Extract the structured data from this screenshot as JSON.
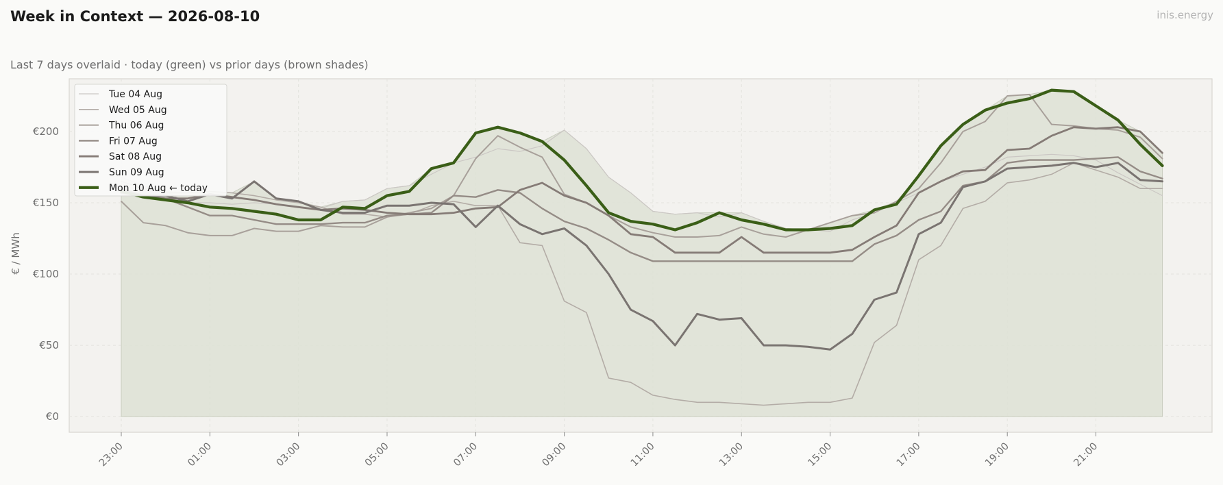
{
  "header": {
    "title": "Week in Context — 2026-08-10",
    "subtitle": "Last 7 days overlaid  ·  today (green) vs prior days (brown shades)",
    "brand": "inis.energy"
  },
  "colors": {
    "today": "#3a5e17",
    "area_fill": "#dde2d5",
    "plot_bg": "#f3f2ef",
    "grid": "#e3e3de",
    "axis_text": "#6f6f6f"
  },
  "chart_data": {
    "type": "line",
    "title": "Week in Context — 2026-08-10",
    "subtitle": "Last 7 days overlaid  ·  today (green) vs prior days (brown shades)",
    "xlabel": "",
    "ylabel": "€ / MWh",
    "ylim": [
      -11,
      237
    ],
    "x": [
      "23:00",
      "23:30",
      "00:00",
      "00:30",
      "01:00",
      "01:30",
      "02:00",
      "02:30",
      "03:00",
      "03:30",
      "04:00",
      "04:30",
      "05:00",
      "05:30",
      "06:00",
      "06:30",
      "07:00",
      "07:30",
      "08:00",
      "08:30",
      "09:00",
      "09:30",
      "10:00",
      "10:30",
      "11:00",
      "11:30",
      "12:00",
      "12:30",
      "13:00",
      "13:30",
      "14:00",
      "14:30",
      "15:00",
      "15:30",
      "16:00",
      "16:30",
      "17:00",
      "17:30",
      "18:00",
      "18:30",
      "19:00",
      "19:30",
      "20:00",
      "20:30",
      "21:00",
      "21:30",
      "22:00",
      "22:30"
    ],
    "xticks": [
      "23:00",
      "01:00",
      "03:00",
      "05:00",
      "07:00",
      "09:00",
      "11:00",
      "13:00",
      "15:00",
      "17:00",
      "19:00",
      "21:00"
    ],
    "yticks": [
      0,
      50,
      100,
      150,
      200
    ],
    "ytick_labels": [
      "€0",
      "€50",
      "€100",
      "€150",
      "€200"
    ],
    "grid": true,
    "legend_position": "top-left",
    "series": [
      {
        "name": "Tue 04 Aug",
        "color": "#cbc7c4",
        "width": 1.2,
        "values": [
          168,
          162,
          158,
          150,
          150,
          149,
          150,
          149,
          147,
          146,
          151,
          152,
          160,
          162,
          170,
          178,
          182,
          188,
          186,
          190,
          201,
          188,
          168,
          157,
          144,
          142,
          143,
          140,
          143,
          137,
          132,
          131,
          130,
          138,
          143,
          150,
          157,
          165,
          170,
          175,
          182,
          183,
          184,
          183,
          180,
          171,
          163,
          155
        ]
      },
      {
        "name": "Wed 05 Aug",
        "color": "#b3aca6",
        "width": 1.6,
        "values": [
          165,
          160,
          157,
          157,
          158,
          157,
          155,
          152,
          150,
          147,
          142,
          142,
          140,
          142,
          148,
          151,
          148,
          148,
          122,
          120,
          81,
          73,
          27,
          24,
          15,
          12,
          10,
          10,
          9,
          8,
          9,
          10,
          10,
          13,
          52,
          64,
          110,
          120,
          146,
          151,
          164,
          166,
          170,
          178,
          173,
          168,
          160,
          160
        ]
      },
      {
        "name": "Thu 06 Aug",
        "color": "#a8a09a",
        "width": 2.0,
        "values": [
          151,
          136,
          134,
          129,
          127,
          127,
          132,
          130,
          130,
          134,
          133,
          133,
          140,
          143,
          146,
          155,
          181,
          197,
          189,
          182,
          156,
          150,
          141,
          133,
          129,
          126,
          126,
          127,
          133,
          128,
          126,
          131,
          136,
          141,
          143,
          151,
          160,
          178,
          200,
          207,
          225,
          226,
          205,
          204,
          202,
          201,
          196,
          181
        ]
      },
      {
        "name": "Fri 07 Aug",
        "color": "#958c86",
        "width": 2.4,
        "values": [
          160,
          155,
          153,
          147,
          141,
          141,
          138,
          135,
          135,
          135,
          136,
          136,
          141,
          142,
          143,
          155,
          154,
          159,
          157,
          146,
          137,
          132,
          124,
          115,
          109,
          109,
          109,
          109,
          109,
          109,
          109,
          109,
          109,
          109,
          121,
          127,
          138,
          144,
          162,
          165,
          178,
          180,
          180,
          180,
          181,
          182,
          172,
          167
        ]
      },
      {
        "name": "Sat 08 Aug",
        "color": "#857b76",
        "width": 2.8,
        "values": [
          157,
          155,
          153,
          153,
          156,
          154,
          152,
          149,
          147,
          145,
          146,
          145,
          143,
          142,
          142,
          143,
          146,
          147,
          159,
          164,
          155,
          150,
          141,
          128,
          126,
          115,
          115,
          115,
          126,
          115,
          115,
          115,
          115,
          117,
          126,
          134,
          157,
          165,
          172,
          173,
          187,
          188,
          197,
          203,
          202,
          203,
          200,
          185
        ]
      },
      {
        "name": "Sun 09 Aug",
        "color": "#7a7471",
        "width": 3.0,
        "values": [
          159,
          155,
          155,
          151,
          156,
          153,
          165,
          153,
          151,
          145,
          143,
          143,
          148,
          148,
          150,
          149,
          133,
          148,
          135,
          128,
          132,
          120,
          100,
          75,
          67,
          50,
          72,
          68,
          69,
          50,
          50,
          49,
          47,
          58,
          82,
          87,
          128,
          136,
          161,
          165,
          174,
          175,
          176,
          178,
          175,
          178,
          166,
          165
        ]
      },
      {
        "name": "Mon 10 Aug",
        "label_suffix": "← today",
        "color": "#3a5e17",
        "width": 4.2,
        "values": [
          158,
          154,
          152,
          150,
          147,
          146,
          144,
          142,
          138,
          138,
          147,
          146,
          155,
          158,
          174,
          178,
          199,
          203,
          199,
          193,
          180,
          162,
          143,
          137,
          135,
          131,
          136,
          143,
          138,
          135,
          131,
          131,
          132,
          134,
          145,
          149,
          169,
          190,
          205,
          215,
          220,
          223,
          229,
          228,
          218,
          208,
          191,
          176
        ]
      }
    ]
  }
}
